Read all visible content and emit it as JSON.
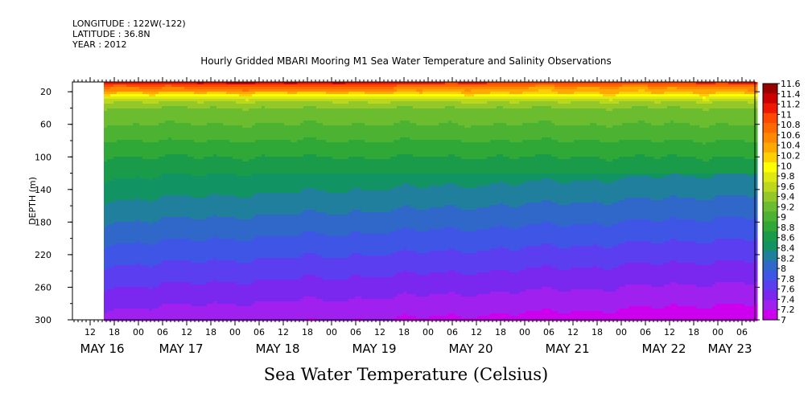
{
  "header": {
    "longitude": "LONGITUDE : 122W(-122)",
    "latitude": "LATITUDE : 36.8N",
    "year": "YEAR : 2012"
  },
  "chart_data": {
    "type": "heatmap",
    "title": "Hourly Gridded MBARI Mooring M1 Sea Water Temperature and Salinity Observations",
    "xlabel": "Sea Water Temperature (Celsius)",
    "ylabel": "DEPTH (m)",
    "y_ticks": [
      20,
      60,
      100,
      140,
      180,
      220,
      260,
      300
    ],
    "ylim": [
      8,
      300
    ],
    "y_reversed": true,
    "x_hour_ticks": [
      "12",
      "18",
      "00",
      "06",
      "12",
      "18",
      "00",
      "06",
      "12",
      "18",
      "00",
      "06",
      "12",
      "18",
      "00",
      "06",
      "12",
      "18",
      "00",
      "06",
      "12",
      "18",
      "00",
      "06",
      "12",
      "18",
      "00",
      "06"
    ],
    "x_day_labels": [
      "MAY 16",
      "MAY 17",
      "MAY 18",
      "MAY 19",
      "MAY 20",
      "MAY 21",
      "MAY 22",
      "MAY 23"
    ],
    "data_start": "MAY 16 18:00",
    "colorbar_levels": [
      7,
      7.2,
      7.4,
      7.6,
      7.8,
      8,
      8.2,
      8.4,
      8.6,
      8.8,
      9,
      9.2,
      9.4,
      9.6,
      9.8,
      10,
      10.2,
      10.4,
      10.6,
      10.8,
      11,
      11.2,
      11.4,
      11.6
    ],
    "colorbar_labels": [
      "11.6",
      "11.4",
      "11.2",
      "11",
      "10.8",
      "10.6",
      "10.4",
      "10.2",
      "10",
      "9.8",
      "9.6",
      "9.4",
      "9.2",
      "9",
      "8.8",
      "8.6",
      "8.4",
      "8.2",
      "8",
      "7.8",
      "7.6",
      "7.4",
      "7.2",
      "7"
    ],
    "colors": [
      "#cc00ee",
      "#a020f0",
      "#7a28f0",
      "#5a3ef0",
      "#3f55e6",
      "#2f68c8",
      "#1f7f9c",
      "#129364",
      "#1a9b4a",
      "#2fa838",
      "#4cb232",
      "#6cbc30",
      "#94c828",
      "#bcd81c",
      "#e0e814",
      "#ffff00",
      "#ffd000",
      "#ffa800",
      "#ff8800",
      "#ff6a00",
      "#ff4800",
      "#ee1800",
      "#cc0000",
      "#990000"
    ],
    "depth_profile": [
      {
        "depth": 8,
        "temp": 11.4
      },
      {
        "depth": 12,
        "temp": 11.0
      },
      {
        "depth": 16,
        "temp": 10.7
      },
      {
        "depth": 20,
        "temp": 10.5
      },
      {
        "depth": 26,
        "temp": 10.0
      },
      {
        "depth": 32,
        "temp": 9.6
      },
      {
        "depth": 45,
        "temp": 9.3
      },
      {
        "depth": 60,
        "temp": 9.2
      },
      {
        "depth": 80,
        "temp": 9.0
      },
      {
        "depth": 100,
        "temp": 8.8
      },
      {
        "depth": 140,
        "temp": 8.5
      },
      {
        "depth": 180,
        "temp": 8.2
      },
      {
        "depth": 220,
        "temp": 7.9
      },
      {
        "depth": 260,
        "temp": 7.6
      },
      {
        "depth": 300,
        "temp": 7.3
      }
    ]
  }
}
